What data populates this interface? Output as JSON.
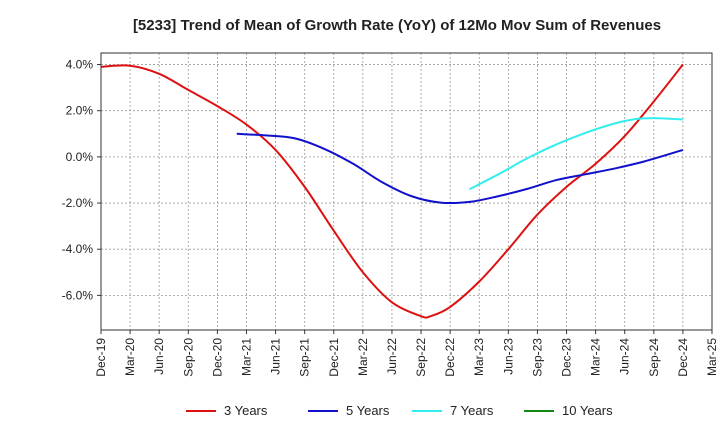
{
  "chart_data": {
    "type": "line",
    "title": "[5233]  Trend of Mean of Growth Rate (YoY) of 12Mo Mov Sum of Revenues",
    "xlabel": "",
    "ylabel": "",
    "x_tick_labels": [
      "Dec-19",
      "Mar-20",
      "Jun-20",
      "Sep-20",
      "Dec-20",
      "Mar-21",
      "Jun-21",
      "Sep-21",
      "Dec-21",
      "Mar-22",
      "Jun-22",
      "Sep-22",
      "Dec-22",
      "Mar-23",
      "Jun-23",
      "Sep-23",
      "Dec-23",
      "Mar-24",
      "Jun-24",
      "Sep-24",
      "Dec-24",
      "Mar-25"
    ],
    "y_tick_labels": [
      "4.0%",
      "2.0%",
      "0.0%",
      "-2.0%",
      "-4.0%",
      "-6.0%"
    ],
    "y_tick_values": [
      4,
      2,
      0,
      -2,
      -4,
      -6
    ],
    "ylim": [
      -7.5,
      4.5
    ],
    "x_range_months": [
      0,
      63
    ],
    "grid": true,
    "legend_position": "bottom",
    "series": [
      {
        "name": "3 Years",
        "color": "#dd1111",
        "x_months": [
          0,
          3,
          6,
          9,
          12,
          15,
          18,
          21,
          24,
          27,
          30,
          33,
          34,
          36,
          39,
          42,
          45,
          48,
          51,
          54,
          57,
          60
        ],
        "values": [
          3.9,
          3.95,
          3.6,
          2.9,
          2.2,
          1.4,
          0.3,
          -1.3,
          -3.2,
          -5.0,
          -6.3,
          -6.9,
          -6.9,
          -6.5,
          -5.4,
          -4.0,
          -2.5,
          -1.3,
          -0.3,
          0.9,
          2.4,
          4.0
        ]
      },
      {
        "name": "5 Years",
        "color": "#1111cc",
        "x_months": [
          14,
          17,
          20,
          23,
          26,
          29,
          32,
          35,
          38,
          41,
          44,
          47,
          50,
          53,
          56,
          60
        ],
        "values": [
          1.0,
          0.93,
          0.8,
          0.35,
          -0.3,
          -1.1,
          -1.7,
          -1.98,
          -1.95,
          -1.7,
          -1.38,
          -1.0,
          -0.75,
          -0.5,
          -0.2,
          0.3
        ]
      },
      {
        "name": "7 Years",
        "color": "#33eeee",
        "x_months": [
          38,
          41,
          44,
          47,
          50,
          53,
          55,
          57,
          60
        ],
        "values": [
          -1.4,
          -0.75,
          -0.05,
          0.55,
          1.05,
          1.45,
          1.63,
          1.68,
          1.62
        ]
      },
      {
        "name": "10 Years",
        "color": "#118811",
        "x_months": [],
        "values": []
      }
    ]
  }
}
